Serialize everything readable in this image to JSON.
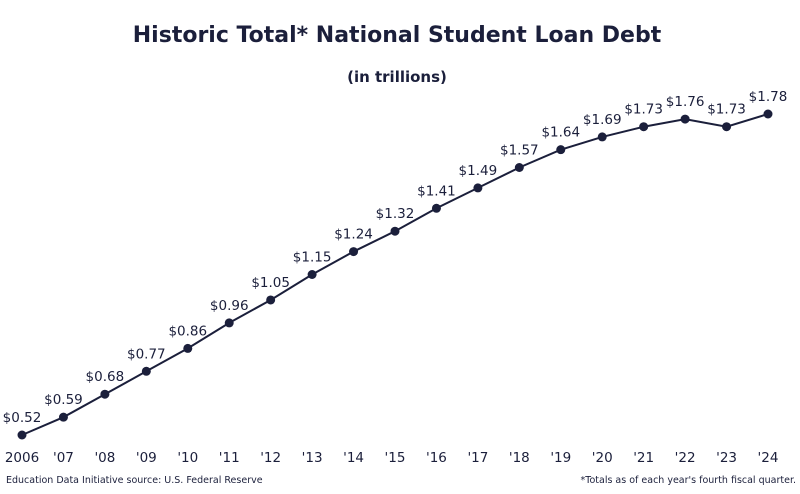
{
  "chart_data": {
    "type": "line",
    "title": "Historic Total* National Student Loan Debt",
    "subtitle": "(in trillions)",
    "categories": [
      "2006",
      "'07",
      "'08",
      "'09",
      "'10",
      "'11",
      "'12",
      "'13",
      "'14",
      "'15",
      "'16",
      "'17",
      "'18",
      "'19",
      "'20",
      "'21",
      "'22",
      "'23",
      "'24"
    ],
    "series": [
      {
        "name": "Total National Student Loan Debt",
        "color": "#1b1f3b",
        "values": [
          0.52,
          0.59,
          0.68,
          0.77,
          0.86,
          0.96,
          1.05,
          1.15,
          1.24,
          1.32,
          1.41,
          1.49,
          1.57,
          1.64,
          1.69,
          1.73,
          1.76,
          1.73,
          1.78
        ],
        "value_labels": [
          "$0.52",
          "$0.59",
          "$0.68",
          "$0.77",
          "$0.86",
          "$0.96",
          "$1.05",
          "$1.15",
          "$1.24",
          "$1.32",
          "$1.41",
          "$1.49",
          "$1.57",
          "$1.64",
          "$1.69",
          "$1.73",
          "$1.76",
          "$1.73",
          "$1.78"
        ]
      }
    ],
    "source": "Education Data Initiative source: U.S. Federal Reserve",
    "footnote": "*Totals as of each year's fourth fiscal quarter."
  }
}
